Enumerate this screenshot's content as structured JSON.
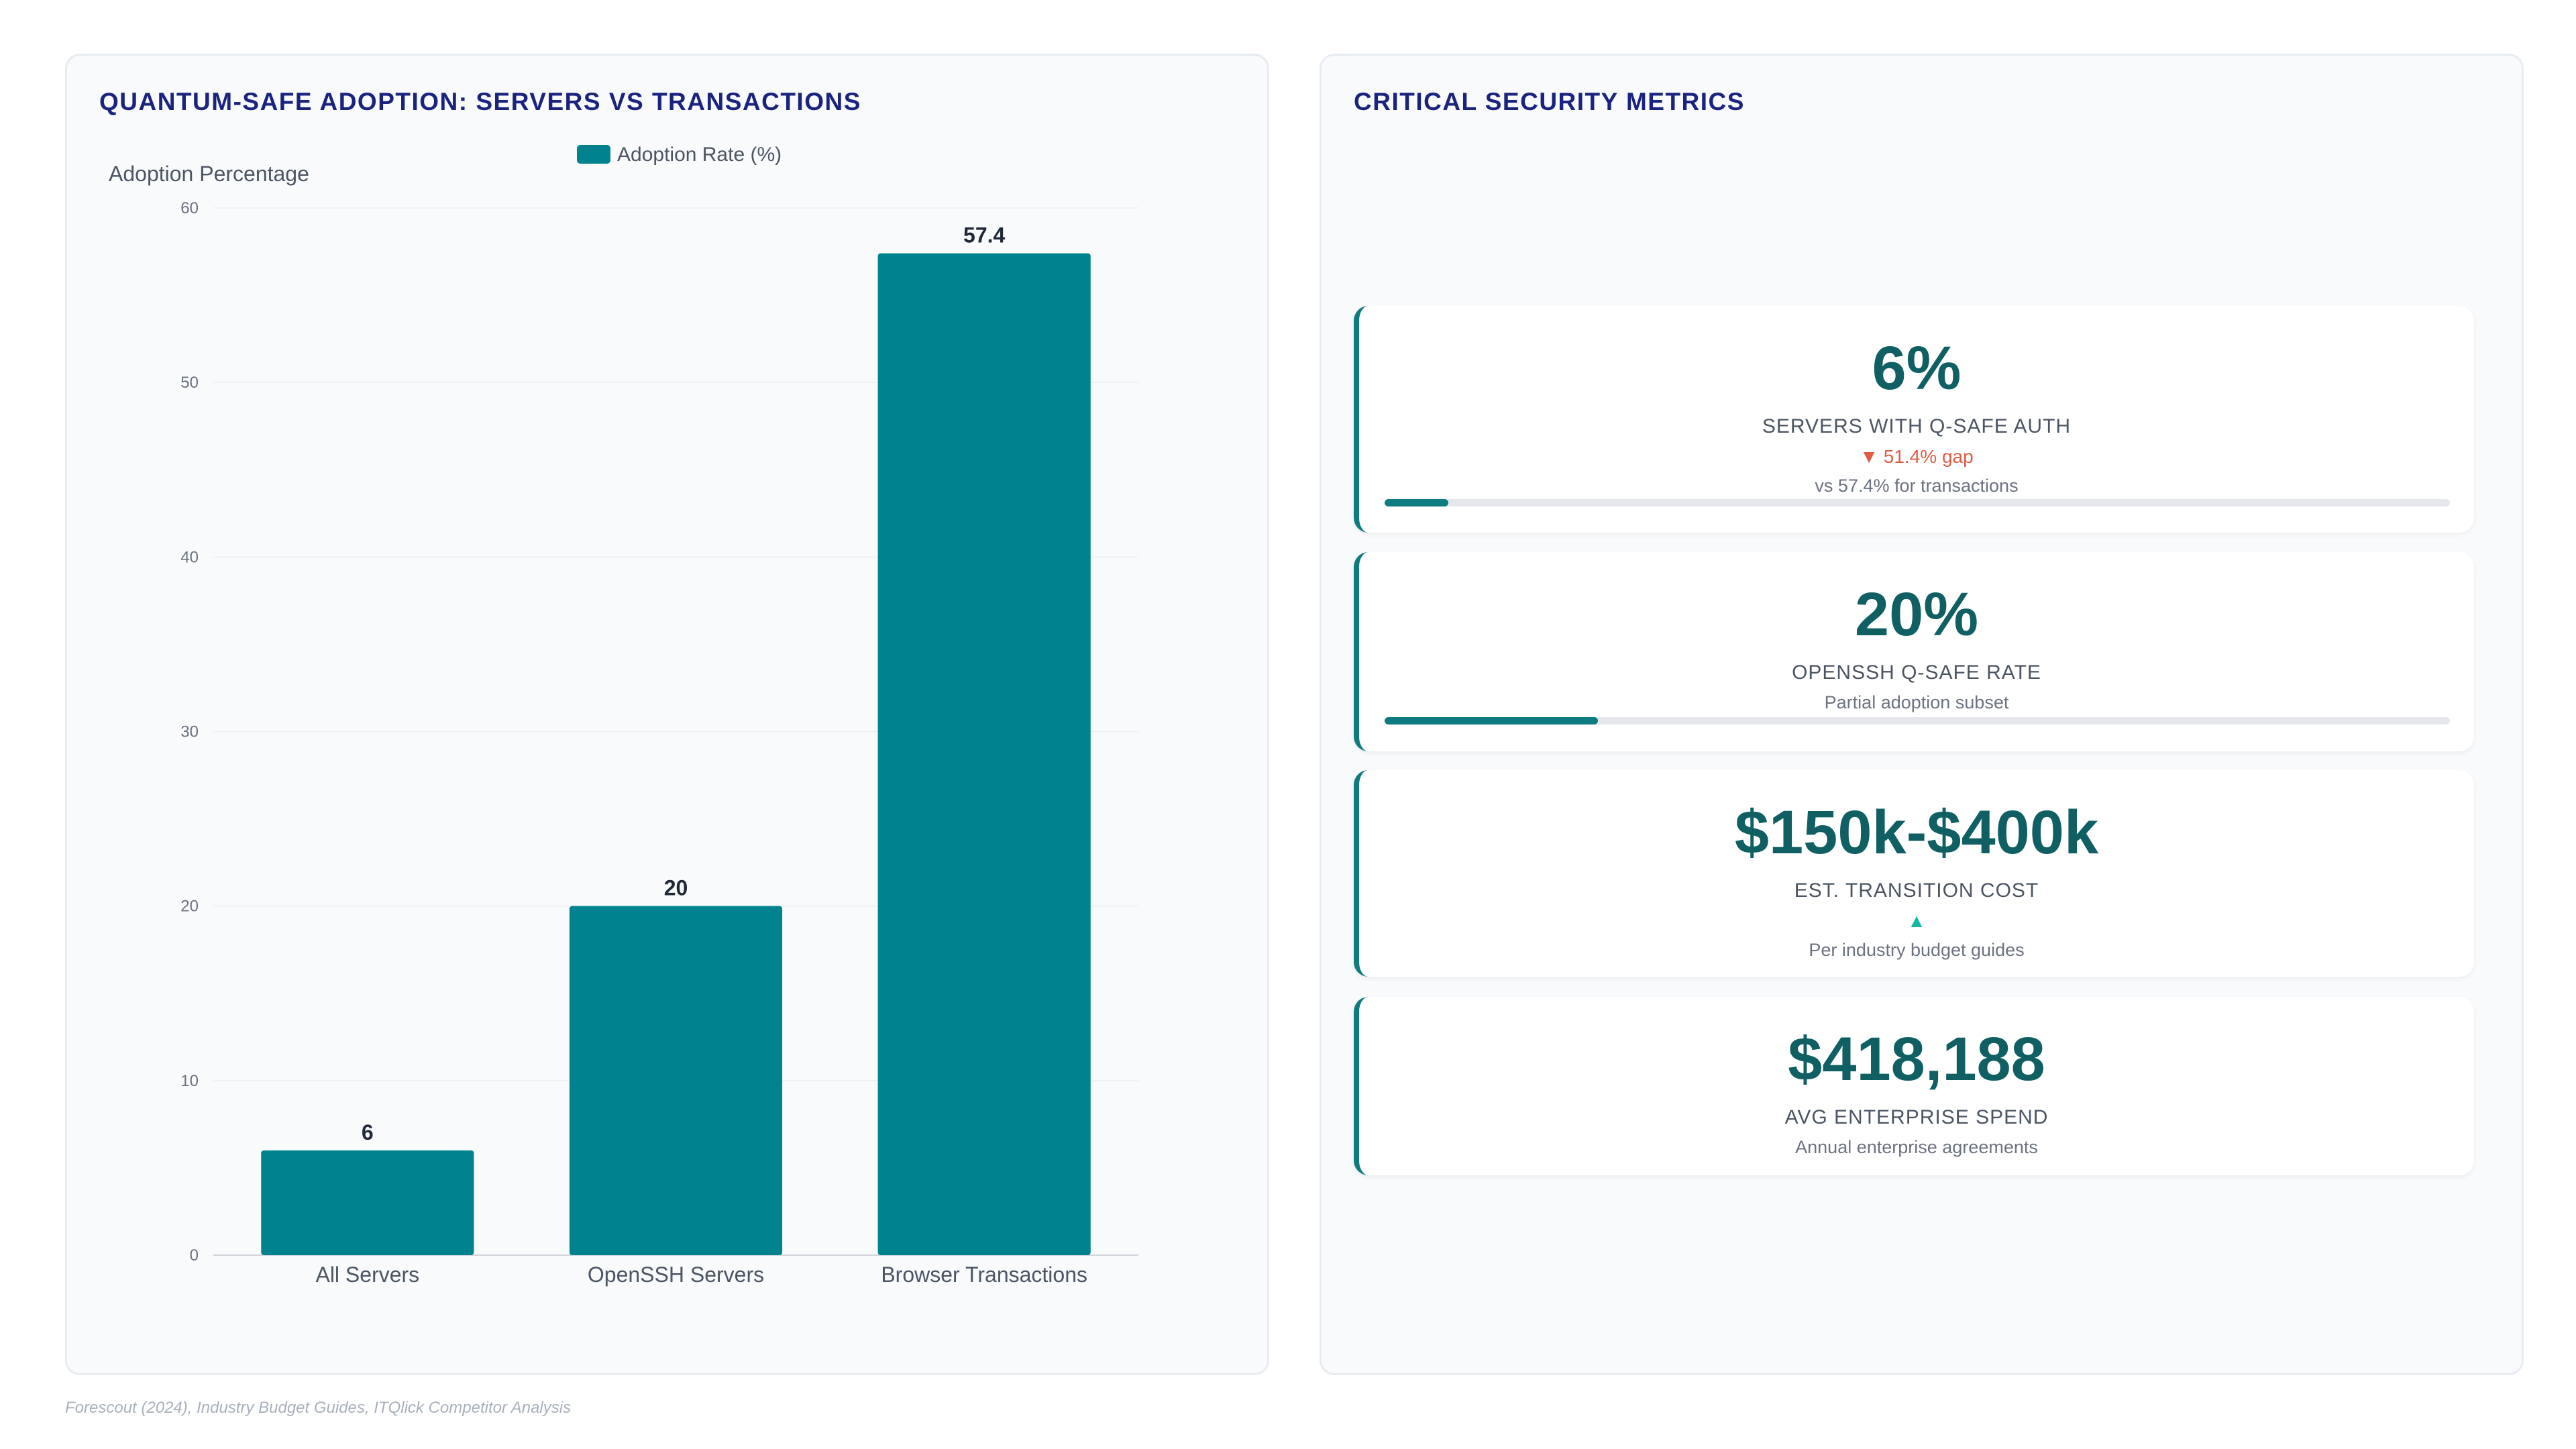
{
  "chart_panel": {
    "title": "QUANTUM-SAFE ADOPTION: SERVERS VS TRANSACTIONS"
  },
  "chart_data": {
    "type": "bar",
    "categories": [
      "All Servers",
      "OpenSSH Servers",
      "Browser Transactions"
    ],
    "series": [
      {
        "name": "Adoption Rate (%)",
        "values": [
          6,
          20,
          57.4
        ],
        "color": "#00838f"
      }
    ],
    "data_labels": [
      "6",
      "20",
      "57.4"
    ],
    "ylabel": "Adoption Percentage",
    "xlabel": "",
    "ylim": [
      0,
      60
    ],
    "yticks": [
      0,
      10,
      20,
      30,
      40,
      50,
      60
    ],
    "grid": true,
    "legend_position": "top"
  },
  "metrics_panel": {
    "title": "CRITICAL SECURITY METRICS",
    "cards": [
      {
        "value": "6%",
        "label": "SERVERS WITH Q-SAFE AUTH",
        "delta": "▼ 51.4% gap",
        "note": "vs 57.4% for transactions",
        "progress": 0.06
      },
      {
        "value": "20%",
        "label": "OPENSSH Q-SAFE RATE",
        "note": "Partial adoption subset",
        "progress": 0.2
      },
      {
        "value": "$150k-$400k",
        "label": "EST. TRANSITION COST",
        "delta": "▲",
        "note": "Per industry budget guides"
      },
      {
        "value": "$418,188",
        "label": "AVG ENTERPRISE SPEND",
        "note": "Annual enterprise agreements"
      }
    ]
  },
  "source": "Forescout (2024), Industry Budget Guides, ITQlick Competitor Analysis",
  "colors": {
    "accent": "#00838f",
    "title": "#1a237e",
    "metric_value": "#0f5f63",
    "negative": "#e05d44",
    "positive": "#14b8a6"
  }
}
